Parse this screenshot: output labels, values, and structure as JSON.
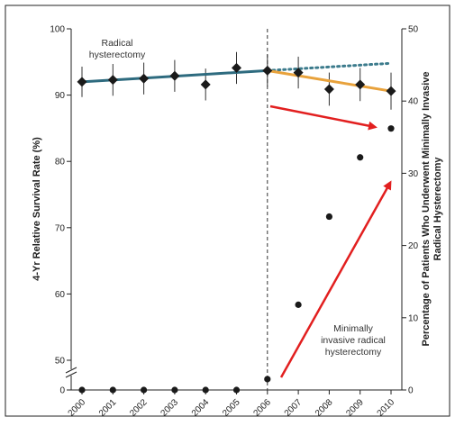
{
  "chart_data": {
    "type": "line",
    "x": [
      "2000",
      "2001",
      "2002",
      "2003",
      "2004",
      "2005",
      "2006",
      "2007",
      "2008",
      "2009",
      "2010"
    ],
    "ylabel_left": "4-Yr Relative Survival Rate (%)",
    "ylabel_right": "Percentage of Patients Who Underwent Minimally Invasive Radical Hysterectomy",
    "y_left_ticks": [
      "0",
      "50",
      "60",
      "70",
      "80",
      "90",
      "100"
    ],
    "y_right_ticks": [
      "0",
      "10",
      "20",
      "30",
      "40",
      "50"
    ],
    "ylim_left_break": [
      0,
      50,
      100
    ],
    "ylim_right": [
      0,
      50
    ],
    "axis_break": true,
    "survival_estimates": [
      92.0,
      92.3,
      92.5,
      92.9,
      91.6,
      94.1,
      93.7,
      93.4,
      90.9,
      91.6,
      90.6
    ],
    "survival_error": [
      [
        89.7,
        94.3
      ],
      [
        89.9,
        94.7
      ],
      [
        90.1,
        94.9
      ],
      [
        90.5,
        95.3
      ],
      [
        89.2,
        94.0
      ],
      [
        91.7,
        96.5
      ],
      [
        91.3,
        96.1
      ],
      [
        91.0,
        95.8
      ],
      [
        88.4,
        93.4
      ],
      [
        89.1,
        94.1
      ],
      [
        87.8,
        93.4
      ]
    ],
    "trend_pre_2006": [
      {
        "x": "2000",
        "y": 92.0
      },
      {
        "x": "2006",
        "y": 93.7
      }
    ],
    "trend_post_2006": [
      {
        "x": "2006",
        "y": 93.7
      },
      {
        "x": "2010",
        "y": 90.6
      }
    ],
    "trend_projection": [
      {
        "x": "2006",
        "y": 93.7
      },
      {
        "x": "2010",
        "y": 94.8
      }
    ],
    "mis_percent": [
      0,
      0,
      0,
      0,
      0,
      0,
      1.5,
      11.8,
      24.0,
      32.2,
      36.2
    ],
    "vertical_reference_x": "2006",
    "grid": false,
    "annotations": {
      "radical": [
        "Radical",
        "hysterectomy"
      ],
      "minimally": [
        "Minimally",
        "invasive radical",
        "hysterectomy"
      ]
    },
    "colors": {
      "pre_trend": "#2e6b7f",
      "post_trend": "#e8a23c",
      "projection": "#3c7b8c",
      "arrows": "#e21f1f",
      "points": "#1a1a1a"
    }
  }
}
